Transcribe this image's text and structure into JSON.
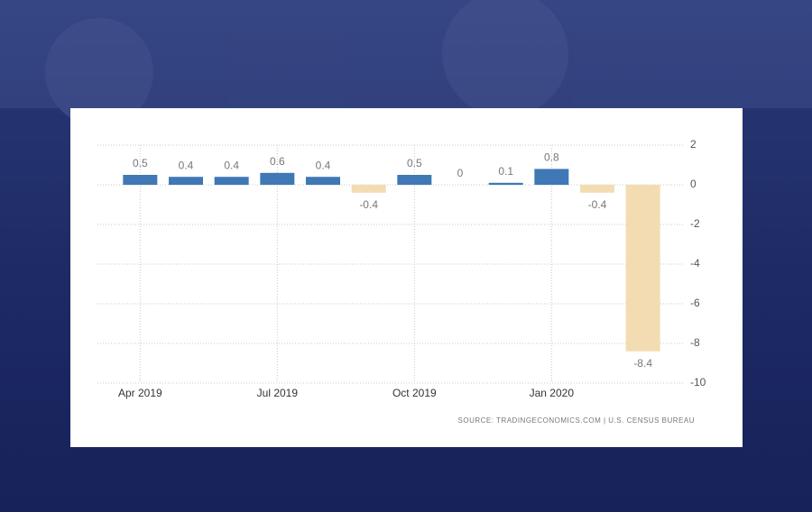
{
  "chart_data": {
    "type": "bar",
    "categories": [
      "Apr 2019",
      null,
      null,
      "Jul 2019",
      null,
      null,
      "Oct 2019",
      null,
      null,
      "Jan 2020",
      null,
      null
    ],
    "values": [
      0.5,
      0.4,
      0.4,
      0.6,
      0.4,
      -0.4,
      0.5,
      0,
      0.1,
      0.8,
      -0.4,
      -8.4
    ],
    "color_positive": "#3f78b4",
    "color_negative": "#f3dcb2",
    "ylim": [
      -10,
      2
    ],
    "yticks": [
      2,
      0,
      -2,
      -4,
      -6,
      -8,
      -10
    ],
    "grid": true,
    "source": "SOURCE: TRADINGECONOMICS.COM | U.S. CENSUS BUREAU"
  }
}
